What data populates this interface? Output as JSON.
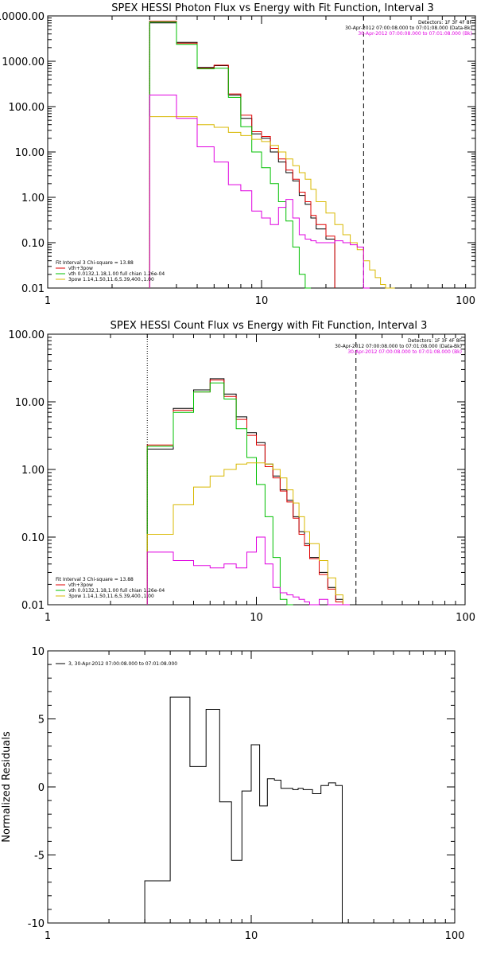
{
  "chart_data": [
    {
      "type": "line",
      "title": "SPEX HESSI Photon Flux vs Energy with Fit Function, Interval 3",
      "xscale": "log",
      "yscale": "log",
      "xlim": [
        1,
        100
      ],
      "ylim": [
        0.01,
        10000
      ],
      "x_ticks": [
        "1",
        "10",
        "100"
      ],
      "y_ticks": [
        "0.01",
        "0.10",
        "1.00",
        "10.00",
        "100.00",
        "1000.00",
        "10000.00"
      ],
      "info_lines": [
        {
          "text": "Detectors: 1F 3F 4F 8F",
          "color": "#000000"
        },
        {
          "text": "30-Apr-2012 07:00:08.000 to 07:01:08.000 (Data-Bk)",
          "color": "#000000"
        },
        {
          "text": "30-Apr-2012 07:00:08.000 to 07:01:08.000 (Bk)",
          "color": "#e000e0"
        }
      ],
      "legend_position": "bottom-left",
      "legend": [
        {
          "text": "Fit Interval 3   Chi-square = 13.88",
          "color": "#000000"
        },
        {
          "text": "vth+3pow",
          "color": "#e00000"
        },
        {
          "text": "vth 0.0132,1.18,1.00  full chian 1.26e-04",
          "color": "#00c000"
        },
        {
          "text": "3pow 1.14,1.50,11.6,5.39,400.,1.00",
          "color": "#d8b800"
        }
      ],
      "markers": {
        "dotted_x": 3,
        "dashed_x": 30
      },
      "bin_edges": [
        3,
        4,
        5,
        6,
        7,
        8,
        9,
        10,
        11,
        12,
        13,
        14,
        15,
        16,
        17,
        18,
        20,
        22,
        24,
        26,
        28,
        30,
        32,
        34,
        36,
        38,
        40,
        42
      ],
      "series": [
        {
          "name": "",
          "color": "#000000",
          "values": [
            7000,
            2600,
            730,
            800,
            180,
            55,
            25,
            20,
            10,
            6,
            3.5,
            2.3,
            1.1,
            0.7,
            0.35,
            0.2,
            0.12
          ]
        },
        {
          "name": "",
          "color": "#e00000",
          "values": [
            7600,
            2500,
            700,
            820,
            190,
            65,
            28,
            22,
            12,
            7,
            4,
            2.5,
            1.3,
            0.8,
            0.4,
            0.25,
            0.14
          ]
        },
        {
          "name": "",
          "color": "#00c000",
          "values": [
            7300,
            2350,
            680,
            700,
            160,
            36,
            10,
            4.5,
            2,
            0.8,
            0.3,
            0.08,
            0.02,
            0.005
          ]
        },
        {
          "name": "",
          "color": "#d8b800",
          "values": [
            60,
            60,
            40,
            35,
            27,
            23,
            19,
            17,
            14,
            10,
            7,
            5,
            3.5,
            2.5,
            1.5,
            0.8,
            0.45,
            0.25,
            0.15,
            0.1,
            0.07,
            0.04,
            0.025,
            0.017,
            0.012,
            0.008,
            0.006
          ]
        },
        {
          "name": "",
          "color": "#e000e0",
          "values": [
            180,
            55,
            13,
            6,
            1.9,
            1.4,
            0.5,
            0.35,
            0.25,
            0.6,
            0.9,
            0.35,
            0.15,
            0.12,
            0.11,
            0.1,
            0.1,
            0.11,
            0.1,
            0.09,
            0.08,
            0.004
          ]
        }
      ]
    },
    {
      "type": "line",
      "title": "SPEX HESSI Count Flux vs Energy with Fit Function, Interval 3",
      "xscale": "log",
      "yscale": "log",
      "xlim": [
        1,
        100
      ],
      "ylim": [
        0.01,
        100
      ],
      "x_ticks": [
        "1",
        "10",
        "100"
      ],
      "y_ticks": [
        "0.01",
        "0.10",
        "1.00",
        "10.00",
        "100.00"
      ],
      "info_lines": [
        {
          "text": "Detectors: 1F 3F 4F 8F",
          "color": "#000000"
        },
        {
          "text": "30-Apr-2012 07:00:08.000 to 07:01:08.000 (Data-Bk)",
          "color": "#000000"
        },
        {
          "text": "30-Apr-2012 07:00:08.000 to 07:01:08.000 (Bk)",
          "color": "#e000e0"
        }
      ],
      "legend_position": "bottom-left",
      "legend": [
        {
          "text": "Fit Interval 3   Chi-square = 13.88",
          "color": "#000000"
        },
        {
          "text": "vth+3pow",
          "color": "#e00000"
        },
        {
          "text": "vth 0.0132,1.18,1.00  full chian 1.26e-04",
          "color": "#00c000"
        },
        {
          "text": "3pow 1.14,1.50,11.6,5.39,400.,1.00",
          "color": "#d8b800"
        }
      ],
      "markers": {
        "dotted_x": 3,
        "dashed_x": 30
      },
      "bin_edges": [
        3,
        4,
        5,
        6,
        7,
        8,
        9,
        10,
        11,
        12,
        13,
        14,
        15,
        16,
        17,
        18,
        20,
        22,
        24,
        26,
        28,
        30
      ],
      "series": [
        {
          "name": "",
          "color": "#000000",
          "values": [
            2.0,
            8,
            15,
            22,
            13,
            6,
            3.5,
            2.5,
            1.2,
            0.8,
            0.5,
            0.35,
            0.2,
            0.12,
            0.08,
            0.05,
            0.03,
            0.018,
            0.012,
            0.008
          ]
        },
        {
          "name": "",
          "color": "#e00000",
          "values": [
            2.3,
            7.5,
            14,
            21,
            12,
            5.5,
            3.2,
            2.3,
            1.1,
            0.75,
            0.48,
            0.33,
            0.19,
            0.11,
            0.075,
            0.048,
            0.028,
            0.017,
            0.011,
            0.007
          ]
        },
        {
          "name": "",
          "color": "#00c000",
          "values": [
            2.2,
            7,
            14,
            19,
            11,
            4,
            1.5,
            0.6,
            0.2,
            0.05,
            0.012,
            0.003
          ]
        },
        {
          "name": "",
          "color": "#d8b800",
          "values": [
            0.11,
            0.3,
            0.55,
            0.8,
            1.0,
            1.2,
            1.25,
            1.25,
            1.2,
            1.0,
            0.75,
            0.5,
            0.32,
            0.2,
            0.12,
            0.08,
            0.045,
            0.025,
            0.014,
            0.008
          ]
        },
        {
          "name": "",
          "color": "#e000e0",
          "values": [
            0.06,
            0.045,
            0.038,
            0.035,
            0.04,
            0.035,
            0.06,
            0.1,
            0.04,
            0.018,
            0.015,
            0.014,
            0.013,
            0.012,
            0.011,
            0.01,
            0.012,
            0.01,
            0.009,
            0.006
          ]
        }
      ]
    },
    {
      "type": "line",
      "title": "",
      "xscale": "log",
      "yscale": "linear",
      "xlim": [
        1,
        100
      ],
      "ylim": [
        -10,
        10
      ],
      "x_ticks": [
        "1",
        "10",
        "100"
      ],
      "y_ticks": [
        "-10",
        "-5",
        "0",
        "5",
        "10"
      ],
      "ylabel": "Normalized Residuals",
      "legend_position": "top-left",
      "legend": [
        {
          "text": "3, 30-Apr-2012 07:00:08.000 to 07:01:08.000",
          "color": "#000000"
        }
      ],
      "bin_edges": [
        3,
        4,
        5,
        6,
        7,
        8,
        9,
        10,
        11,
        12,
        13,
        14,
        15,
        16,
        17,
        18,
        20,
        22,
        24,
        26,
        28,
        30
      ],
      "series": [
        {
          "name": "",
          "color": "#000000",
          "values": [
            -6.9,
            6.6,
            1.5,
            5.7,
            -1.1,
            -5.4,
            -0.3,
            3.1,
            -1.4,
            0.6,
            0.5,
            -0.1,
            -0.1,
            -0.2,
            -0.1,
            -0.2,
            -0.5,
            0.1,
            0.3,
            0.1
          ]
        }
      ]
    }
  ]
}
